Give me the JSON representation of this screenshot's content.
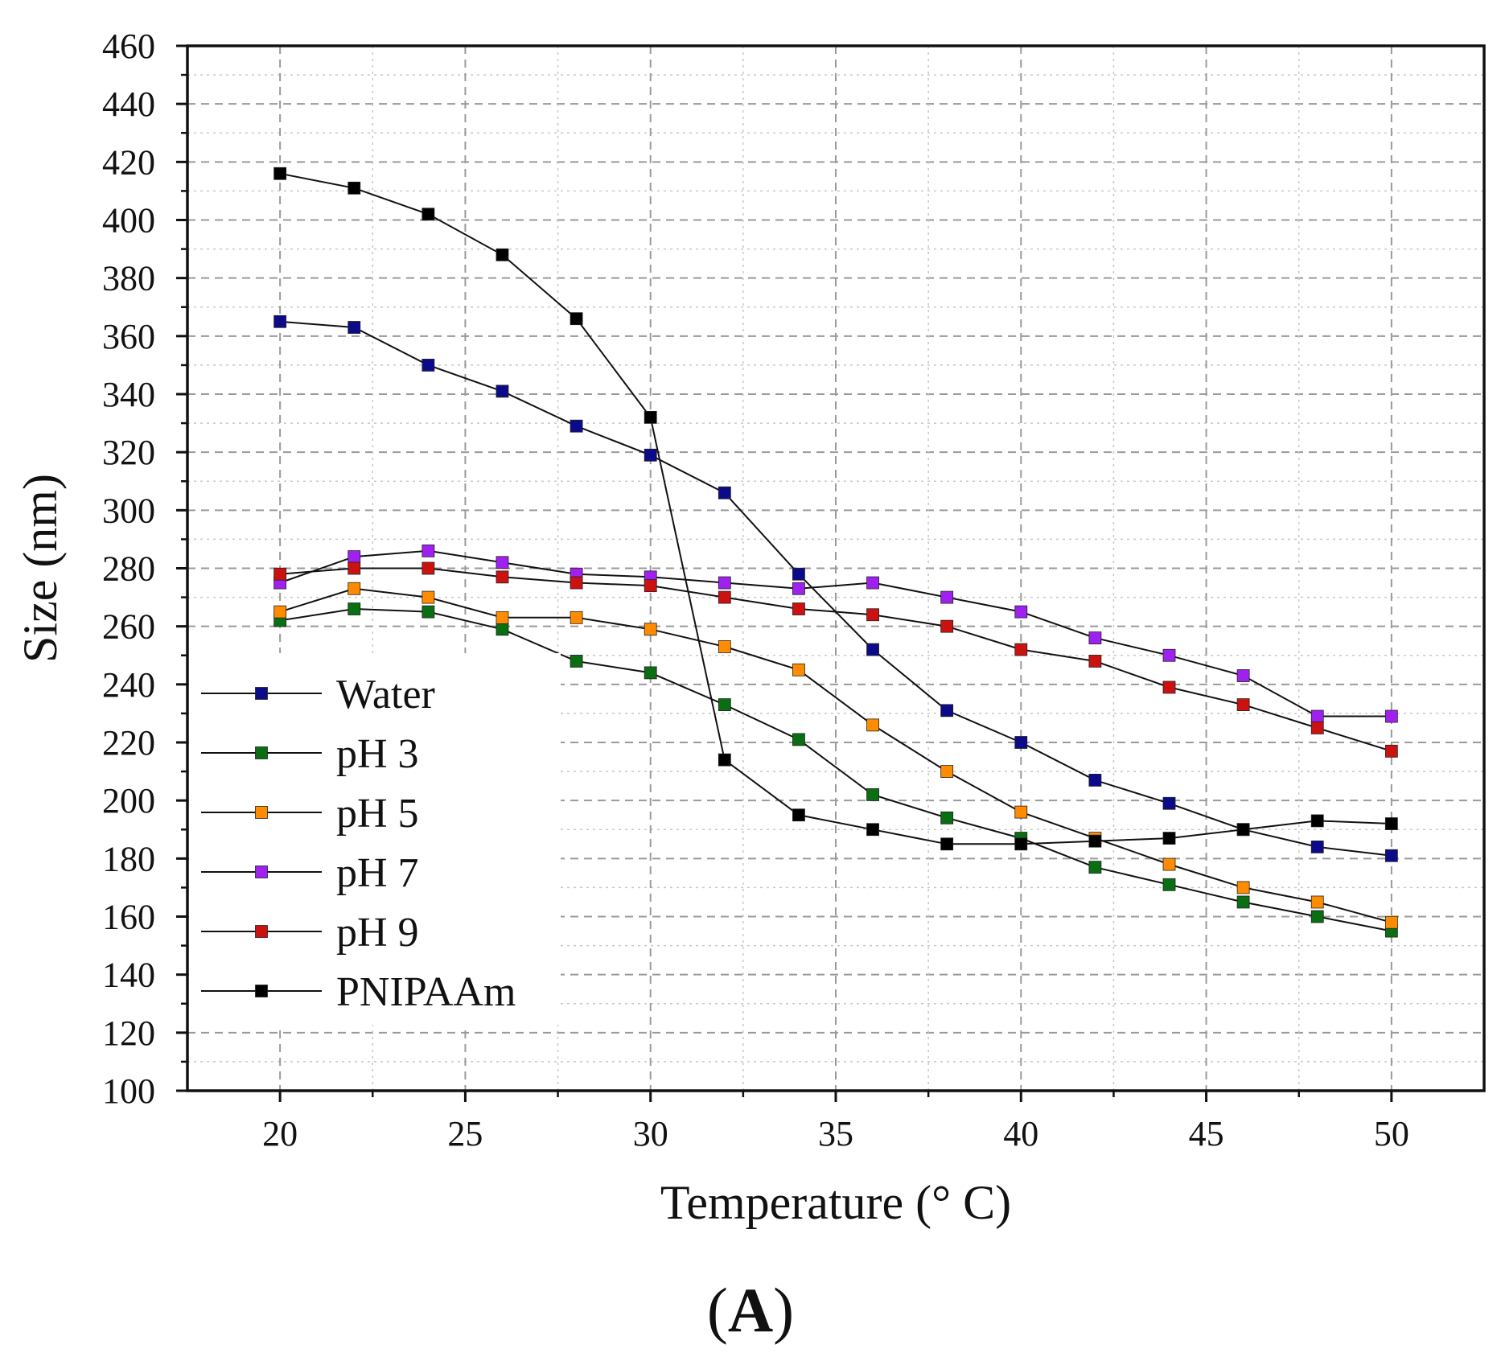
{
  "chart_data": {
    "type": "line",
    "title": "",
    "xlabel": "Temperature (° C)",
    "ylabel": "Size (nm)",
    "panel_label": "A",
    "xlim": [
      17.5,
      52.5
    ],
    "ylim": [
      100,
      460
    ],
    "xticks": [
      20,
      25,
      30,
      35,
      40,
      45,
      50
    ],
    "yticks": [
      100,
      120,
      140,
      160,
      180,
      200,
      220,
      240,
      260,
      280,
      300,
      320,
      340,
      360,
      380,
      400,
      420,
      440,
      460
    ],
    "grid": true,
    "legend_position": "lower-left",
    "x": [
      20,
      22,
      24,
      26,
      28,
      30,
      32,
      34,
      36,
      38,
      40,
      42,
      44,
      46,
      48,
      50
    ],
    "series": [
      {
        "name": "Water",
        "color": "#0b0b8a",
        "values": [
          365,
          363,
          350,
          341,
          329,
          319,
          306,
          278,
          252,
          231,
          220,
          207,
          199,
          190,
          184,
          181
        ]
      },
      {
        "name": "pH 3",
        "color": "#0a6e12",
        "values": [
          262,
          266,
          265,
          259,
          248,
          244,
          233,
          221,
          202,
          194,
          187,
          177,
          171,
          165,
          160,
          155
        ]
      },
      {
        "name": "pH 5",
        "color": "#ff8c00",
        "values": [
          265,
          273,
          270,
          263,
          263,
          259,
          253,
          245,
          226,
          210,
          196,
          187,
          178,
          170,
          165,
          158
        ]
      },
      {
        "name": "pH 7",
        "color": "#a020f0",
        "values": [
          275,
          284,
          286,
          282,
          278,
          277,
          275,
          273,
          275,
          270,
          265,
          256,
          250,
          243,
          229,
          229
        ]
      },
      {
        "name": "pH 9",
        "color": "#cc1111",
        "values": [
          278,
          280,
          280,
          277,
          275,
          274,
          270,
          266,
          264,
          260,
          252,
          248,
          239,
          233,
          225,
          217
        ]
      },
      {
        "name": "PNIPAAm",
        "color": "#000000",
        "values": [
          416,
          411,
          402,
          388,
          366,
          332,
          214,
          195,
          190,
          185,
          185,
          186,
          187,
          190,
          193,
          192
        ]
      }
    ]
  }
}
